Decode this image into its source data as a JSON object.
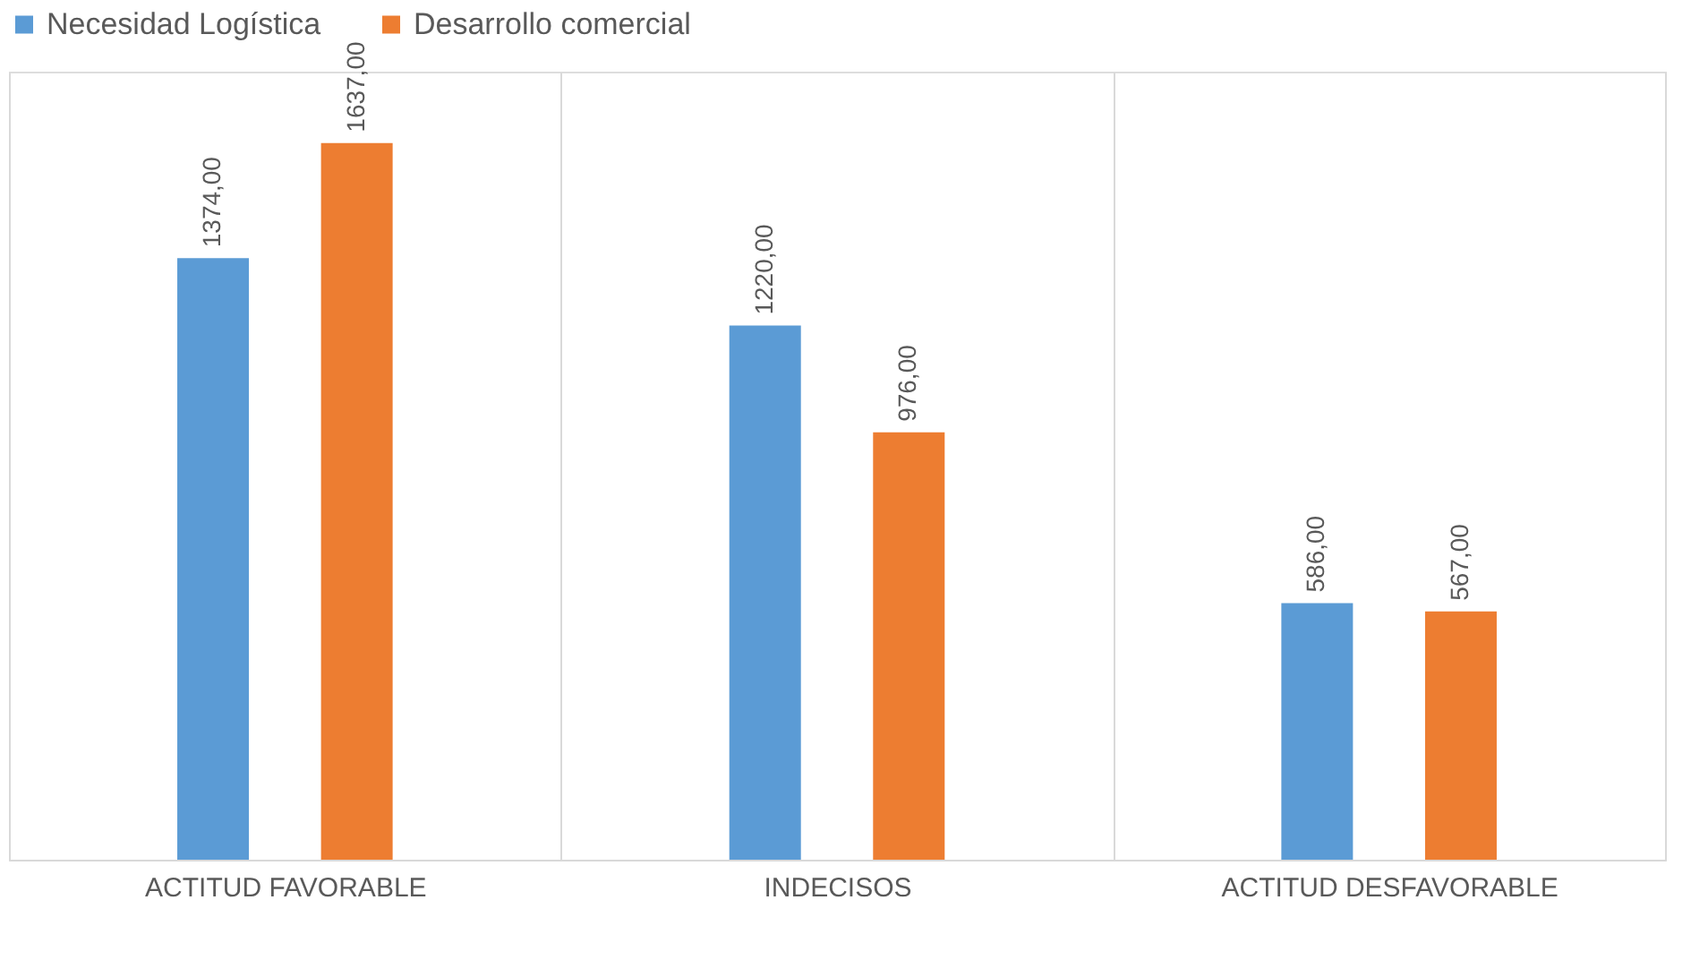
{
  "chart_data": {
    "type": "bar",
    "categories": [
      "ACTITUD FAVORABLE",
      "INDECISOS",
      "ACTITUD DESFAVORABLE"
    ],
    "series": [
      {
        "name": "Necesidad Logística",
        "color": "#5b9bd5",
        "values": [
          1374,
          1220,
          586
        ],
        "value_labels": [
          "1374,00",
          "1220,00",
          "586,00"
        ]
      },
      {
        "name": "Desarrollo comercial",
        "color": "#ed7d31",
        "values": [
          1637,
          976,
          567
        ],
        "value_labels": [
          "1637,00",
          "976,00",
          "567,00"
        ]
      }
    ],
    "grid": "x",
    "legend": "top",
    "tick_labels": "x"
  }
}
